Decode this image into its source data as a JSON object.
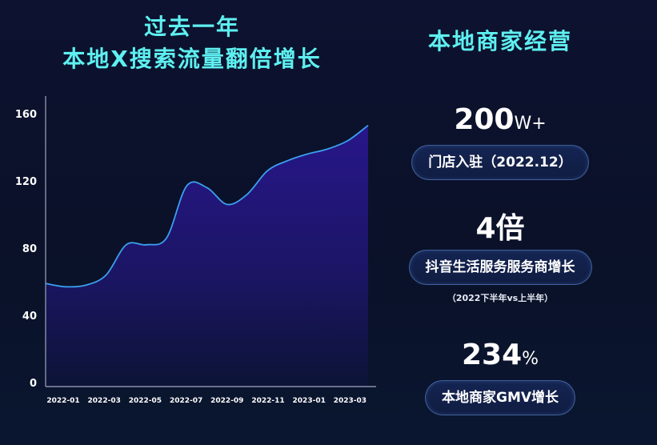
{
  "left_title": {
    "line1": "过去一年",
    "line2": "本地X搜索流量翻倍增长"
  },
  "right_title": "本地商家经营",
  "stats": [
    {
      "value": "200",
      "unit": "W+",
      "label": "门店入驻（2022.12）"
    },
    {
      "value": "4",
      "unit": "倍",
      "label": "抖音生活服务服务商增长",
      "note": "（2022下半年vs上半年）"
    },
    {
      "value": "234",
      "unit": "%",
      "label": "本地商家GMV增长"
    }
  ],
  "colors": {
    "title": "#5ef0f0",
    "line": "#3aa0f0",
    "area_top": "#27168a",
    "area_bottom": "#0c1436",
    "axis": "#8a90a8"
  },
  "chart_data": {
    "type": "area",
    "title": "过去一年 本地X搜索流量翻倍增长",
    "xlabel": "",
    "ylabel": "",
    "ylim": [
      0,
      160
    ],
    "yticks": [
      0,
      40,
      80,
      120,
      160
    ],
    "xtick_labels": [
      "2022-01",
      "2022-03",
      "2022-05",
      "2022-07",
      "2022-09",
      "2022-11",
      "2023-01",
      "2023-03"
    ],
    "grid": false,
    "legend": null,
    "x": [
      "2021-12",
      "2022-01",
      "2022-02",
      "2022-03",
      "2022-04",
      "2022-05",
      "2022-06",
      "2022-07",
      "2022-08",
      "2022-09",
      "2022-10",
      "2022-11",
      "2022-12",
      "2023-01",
      "2023-02",
      "2023-03",
      "2023-04"
    ],
    "series": [
      {
        "name": "本地X搜索流量",
        "values": [
          59,
          57,
          58,
          64,
          82,
          82,
          86,
          117,
          116,
          106,
          112,
          126,
          132,
          136,
          139,
          144,
          153
        ]
      }
    ]
  }
}
